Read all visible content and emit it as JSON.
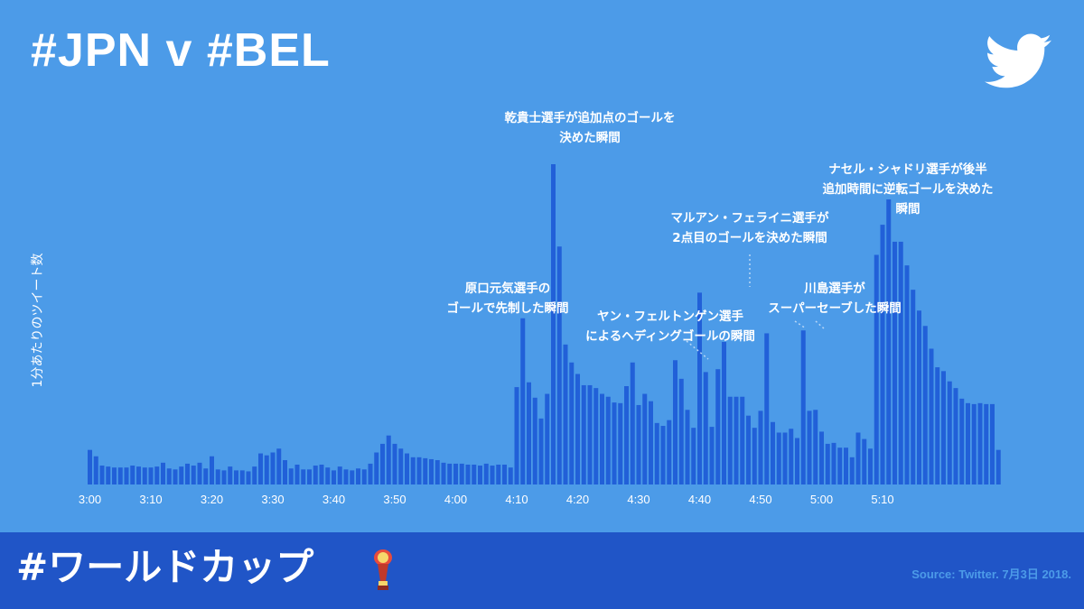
{
  "header": {
    "title": "#JPN v #BEL"
  },
  "footer": {
    "hashtag": "#ワールドカップ",
    "source": "Source: Twitter. 7月3日 2018."
  },
  "icons": {
    "logo": "twitter-bird-icon",
    "trophy": "world-cup-trophy-icon"
  },
  "colors": {
    "background": "#4c9be8",
    "bar": "#2160d8",
    "footer": "#2055c7",
    "text": "#ffffff",
    "source_text": "#4c9be8"
  },
  "chart_data": {
    "type": "bar",
    "ylabel": "1分あたりのツイート数",
    "xlabel": "",
    "x_tick_labels": [
      "3:00",
      "3:10",
      "3:20",
      "3:30",
      "3:40",
      "3:50",
      "4:00",
      "4:10",
      "4:20",
      "4:30",
      "4:40",
      "4:50",
      "5:00",
      "5:10"
    ],
    "start_time": "3:00",
    "interval_minutes": 1,
    "ylim": [
      0,
      100
    ],
    "grid": false,
    "values": [
      10.8,
      8.8,
      5.9,
      5.6,
      5.3,
      5.3,
      5.3,
      5.9,
      5.6,
      5.3,
      5.3,
      5.6,
      6.8,
      5.0,
      4.7,
      5.6,
      6.5,
      5.9,
      6.8,
      5.0,
      8.8,
      4.7,
      4.4,
      5.6,
      4.4,
      4.4,
      4.1,
      5.6,
      9.7,
      9.1,
      10.0,
      11.2,
      7.6,
      5.0,
      6.2,
      4.7,
      4.7,
      5.9,
      6.2,
      5.3,
      4.4,
      5.6,
      4.7,
      4.4,
      5.0,
      4.7,
      6.5,
      10.0,
      12.7,
      15.3,
      12.7,
      11.2,
      9.7,
      8.5,
      8.5,
      8.2,
      7.9,
      7.6,
      6.8,
      6.5,
      6.5,
      6.5,
      6.2,
      6.2,
      5.9,
      6.5,
      5.9,
      6.2,
      6.2,
      5.3,
      30.4,
      51.9,
      31.9,
      27.1,
      20.6,
      28.3,
      100,
      74.3,
      43.7,
      38.1,
      34.5,
      31.0,
      31.0,
      30.1,
      28.3,
      27.4,
      25.6,
      25.4,
      30.7,
      38.1,
      24.8,
      28.3,
      26.0,
      19.2,
      18.3,
      20.1,
      38.8,
      33.0,
      23.3,
      17.7,
      59.9,
      35.1,
      18.0,
      36.0,
      44.5,
      27.4,
      27.4,
      27.4,
      21.5,
      17.7,
      23.0,
      47.2,
      19.5,
      16.2,
      16.2,
      17.4,
      14.5,
      48.1,
      23.0,
      23.3,
      16.5,
      12.7,
      13.0,
      11.5,
      11.5,
      8.5,
      16.2,
      14.2,
      11.2,
      71.7,
      81.1,
      89.0,
      75.8,
      75.8,
      68.4,
      60.8,
      54.3,
      49.5,
      42.4,
      36.6,
      35.4,
      32.2,
      30.1,
      26.8,
      25.4,
      25.1,
      25.4,
      25.1,
      25.1,
      10.8
    ],
    "annotations": [
      {
        "lines": [
          "乾貴士選手が追加点のゴールを",
          "決めた瞬間"
        ]
      },
      {
        "lines": [
          "原口元気選手の",
          "ゴールで先制した瞬間"
        ]
      },
      {
        "lines": [
          "ヤン・フェルトンゲン選手",
          "によるヘディングゴールの瞬間"
        ]
      },
      {
        "lines": [
          "マルアン・フェライニ選手が",
          "2点目のゴールを決めた瞬間"
        ]
      },
      {
        "lines": [
          "川島選手が",
          "スーパーセーブした瞬間"
        ]
      },
      {
        "lines": [
          "ナセル・シャドリ選手が後半",
          "追加時間に逆転ゴールを決めた",
          "瞬間"
        ]
      }
    ]
  }
}
